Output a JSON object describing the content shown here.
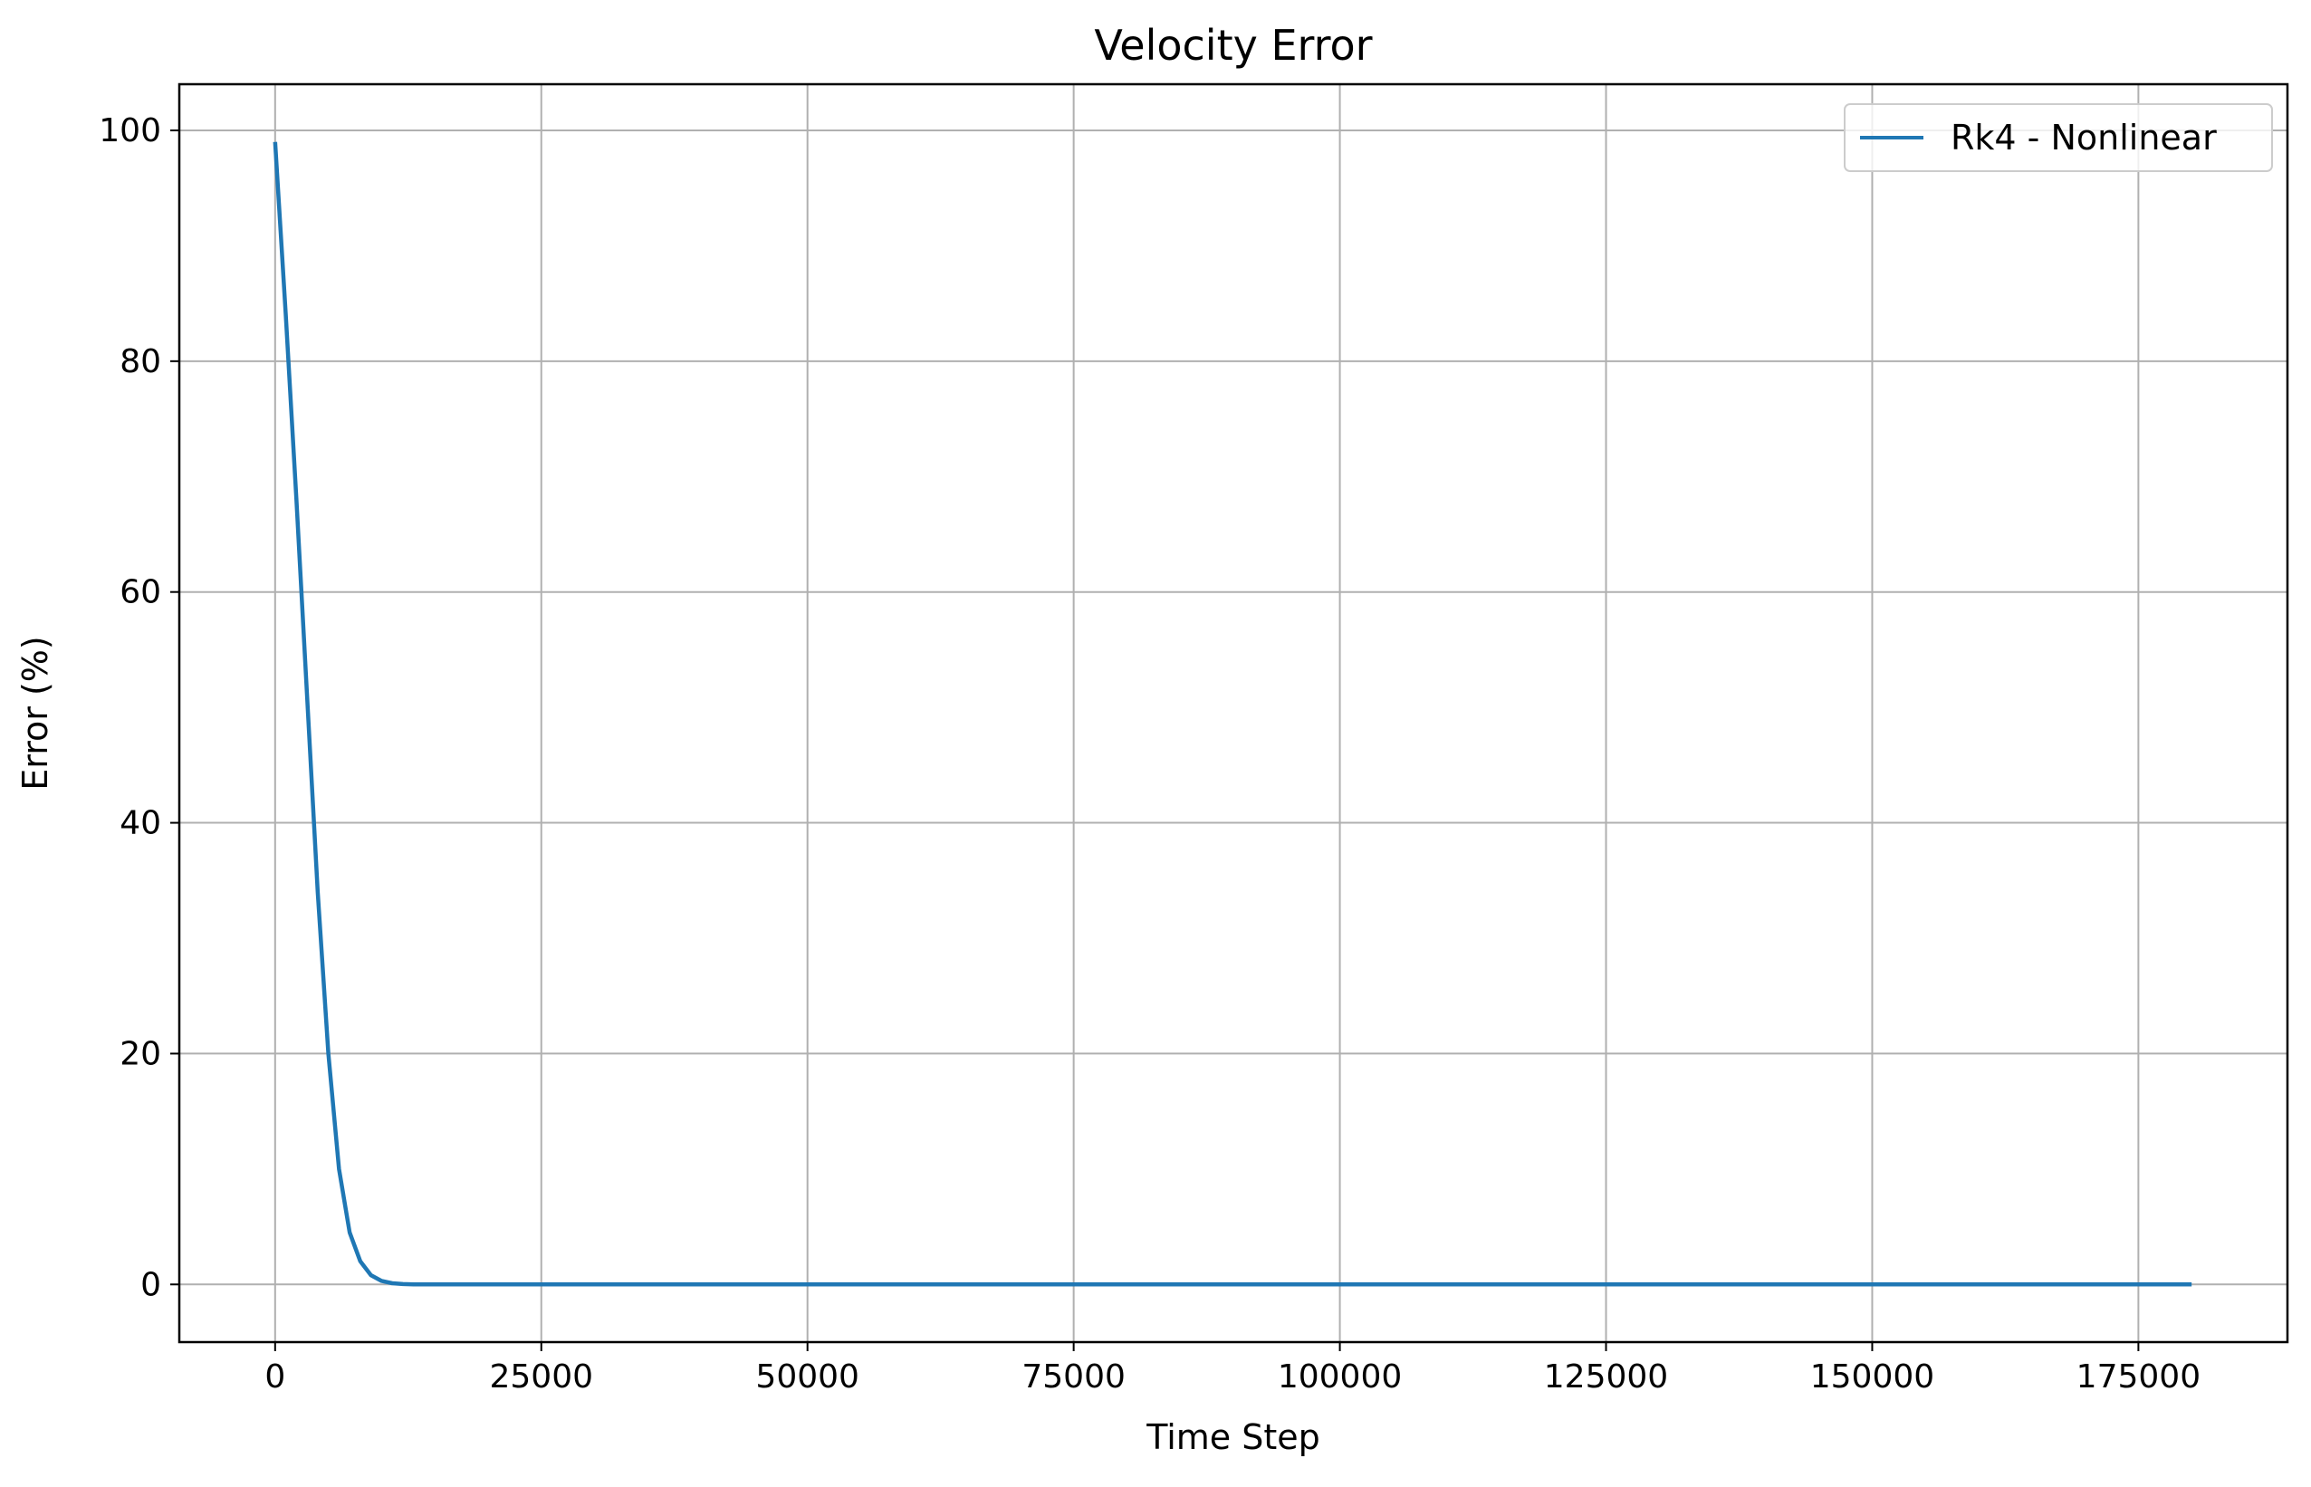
{
  "chart_data": {
    "type": "line",
    "title": "Velocity Error",
    "xlabel": "Time Step",
    "ylabel": "Error (%)",
    "xlim": [
      -9000,
      189000
    ],
    "ylim": [
      -5,
      104
    ],
    "xticks": [
      0,
      25000,
      50000,
      75000,
      100000,
      125000,
      150000,
      175000
    ],
    "yticks": [
      0,
      20,
      40,
      60,
      80,
      100
    ],
    "grid": true,
    "legend_position": "top-right",
    "series": [
      {
        "name": "Rk4 - Nonlinear",
        "color": "#1f77b4",
        "x": [
          0,
          1000,
          2000,
          3000,
          4000,
          5000,
          6000,
          7000,
          8000,
          9000,
          10000,
          11000,
          12000,
          13000,
          15000,
          20000,
          30000,
          50000,
          75000,
          100000,
          125000,
          150000,
          175000,
          180000
        ],
        "y": [
          99,
          84,
          68,
          51,
          34,
          20,
          10,
          4.5,
          2,
          0.8,
          0.3,
          0.1,
          0.03,
          0,
          0,
          0,
          0,
          0,
          0,
          0,
          0,
          0,
          0,
          0
        ]
      }
    ]
  }
}
